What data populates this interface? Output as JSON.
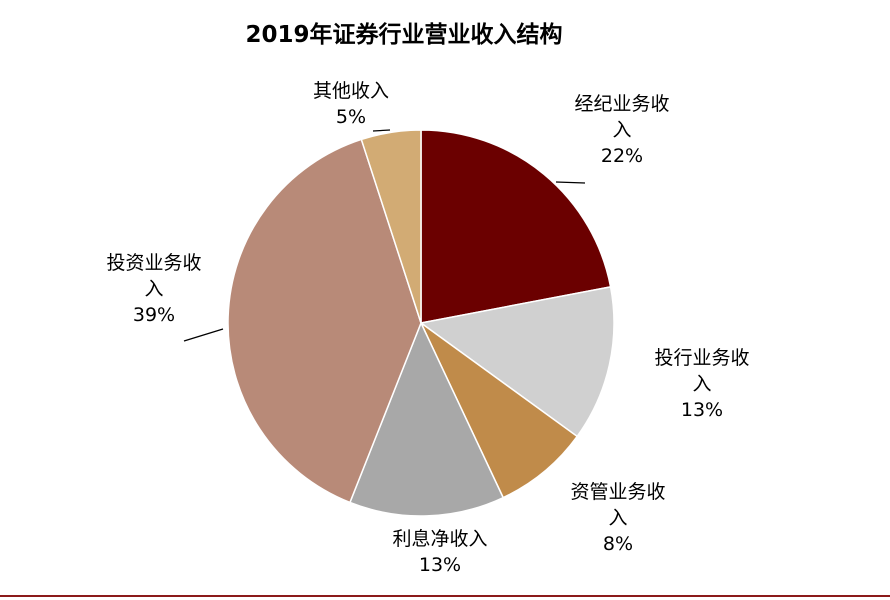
{
  "chart_data": {
    "type": "pie",
    "title": "2019年证券行业营业收入结构",
    "start_angle_deg": 0,
    "direction": "clockwise",
    "slices": [
      {
        "label_lines": [
          "经纪业务收",
          "入",
          "22%"
        ],
        "value": 22,
        "color": "#6b0000"
      },
      {
        "label_lines": [
          "投行业务收",
          "入",
          "13%"
        ],
        "value": 13,
        "color": "#d0d0d0"
      },
      {
        "label_lines": [
          "资管业务收",
          "入",
          "8%"
        ],
        "value": 8,
        "color": "#c08b4a"
      },
      {
        "label_lines": [
          "利息净收入",
          "13%"
        ],
        "value": 13,
        "color": "#a8a8a8"
      },
      {
        "label_lines": [
          "投资业务收",
          "入",
          "39%"
        ],
        "value": 39,
        "color": "#b88a78"
      },
      {
        "label_lines": [
          "其他收入",
          "5%"
        ],
        "value": 5,
        "color": "#d2ab74"
      }
    ]
  },
  "frame": {
    "bottom_rule_color": "#8b1a1a"
  }
}
